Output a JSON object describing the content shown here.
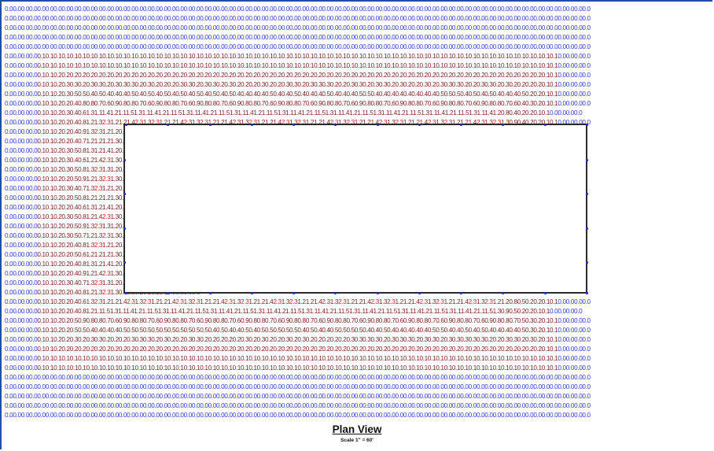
{
  "view": {
    "title": "Plan View",
    "scale": "Scale  1\" = 60'"
  },
  "photometric_grid": {
    "columns": 72,
    "rows": 44,
    "building_cols": [
      12,
      59
    ],
    "building_rows": [
      13,
      30
    ],
    "colors": {
      "zero": "#2f3fd4",
      "value": "#7a1e1e",
      "high": "#e21d1d",
      "outline": "#2a2a2a",
      "marker": "#1b2fd0"
    }
  }
}
